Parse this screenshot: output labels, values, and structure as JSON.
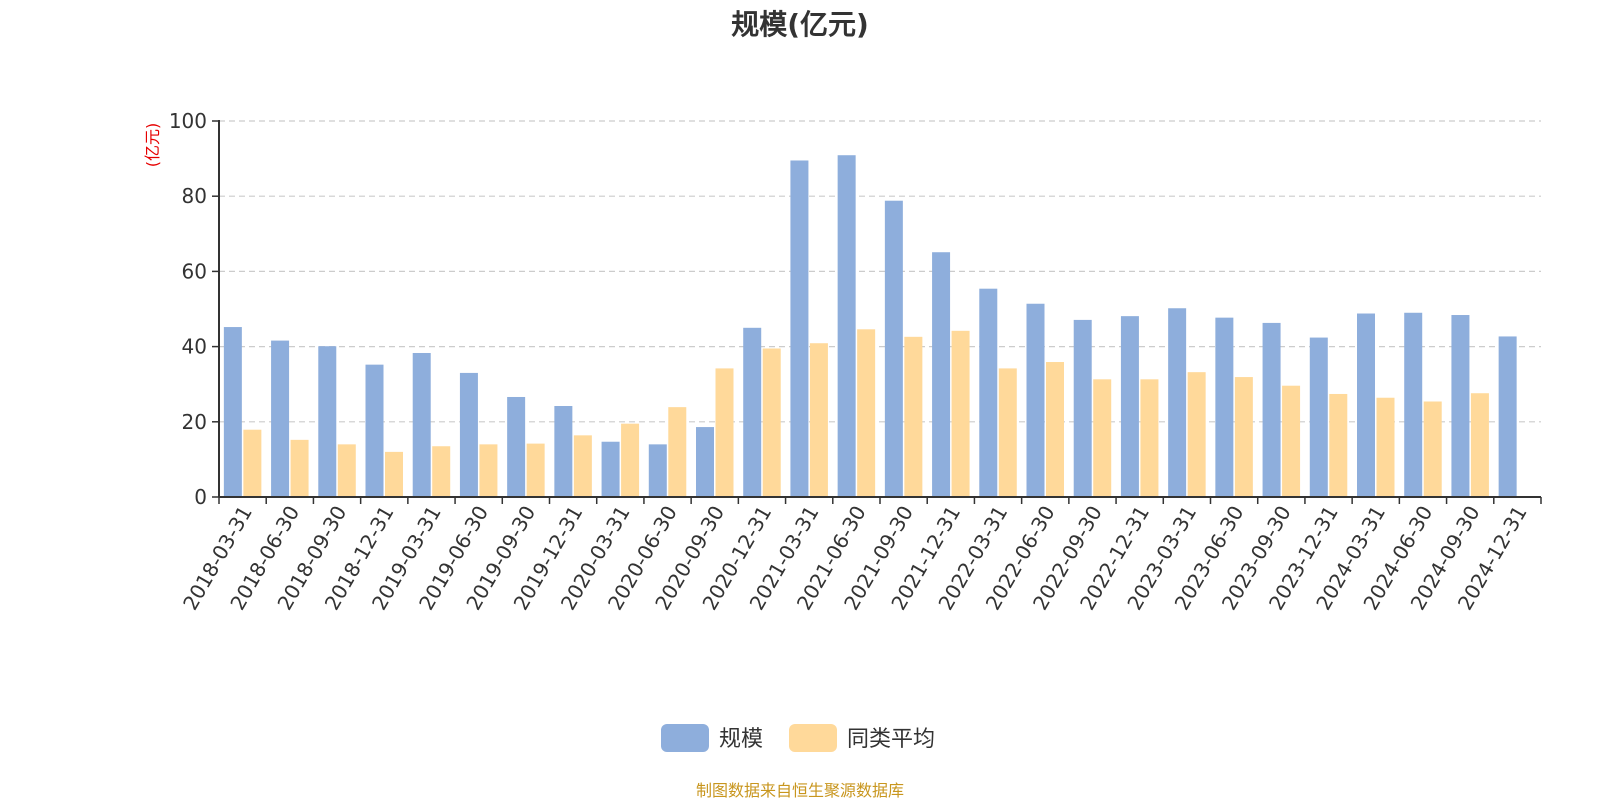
{
  "chart_data": {
    "type": "bar",
    "title": "规模(亿元)",
    "ylabel": "(亿元)",
    "xlabel": "",
    "ylim": [
      0,
      100
    ],
    "yticks": [
      0,
      20,
      40,
      60,
      80,
      100
    ],
    "grid": true,
    "legend_position": "bottom-center",
    "categories": [
      "2018-03-31",
      "2018-06-30",
      "2018-09-30",
      "2018-12-31",
      "2019-03-31",
      "2019-06-30",
      "2019-09-30",
      "2019-12-31",
      "2020-03-31",
      "2020-06-30",
      "2020-09-30",
      "2020-12-31",
      "2021-03-31",
      "2021-06-30",
      "2021-09-30",
      "2021-12-31",
      "2022-03-31",
      "2022-06-30",
      "2022-09-30",
      "2022-12-31",
      "2023-03-31",
      "2023-06-30",
      "2023-09-30",
      "2023-12-31",
      "2024-03-31",
      "2024-06-30",
      "2024-09-30",
      "2024-12-31"
    ],
    "series": [
      {
        "name": "规模",
        "color": "#8eaedc",
        "values": [
          45.2,
          41.6,
          40.1,
          35.2,
          38.3,
          33.0,
          26.6,
          24.2,
          14.7,
          14.0,
          18.6,
          45.0,
          89.5,
          90.9,
          78.8,
          65.1,
          55.4,
          51.4,
          47.1,
          48.1,
          50.2,
          47.7,
          46.3,
          42.4,
          48.8,
          49.0,
          48.4,
          42.7
        ]
      },
      {
        "name": "同类平均",
        "color": "#ffd99a",
        "values": [
          17.9,
          15.2,
          14.0,
          12.0,
          13.5,
          14.0,
          14.2,
          16.4,
          19.5,
          23.9,
          34.2,
          39.5,
          40.9,
          44.6,
          42.6,
          44.2,
          34.2,
          35.9,
          31.3,
          31.3,
          33.2,
          31.9,
          29.6,
          27.4,
          26.4,
          25.4,
          27.6,
          null
        ]
      }
    ]
  },
  "source_note": "制图数据来自恒生聚源数据库"
}
